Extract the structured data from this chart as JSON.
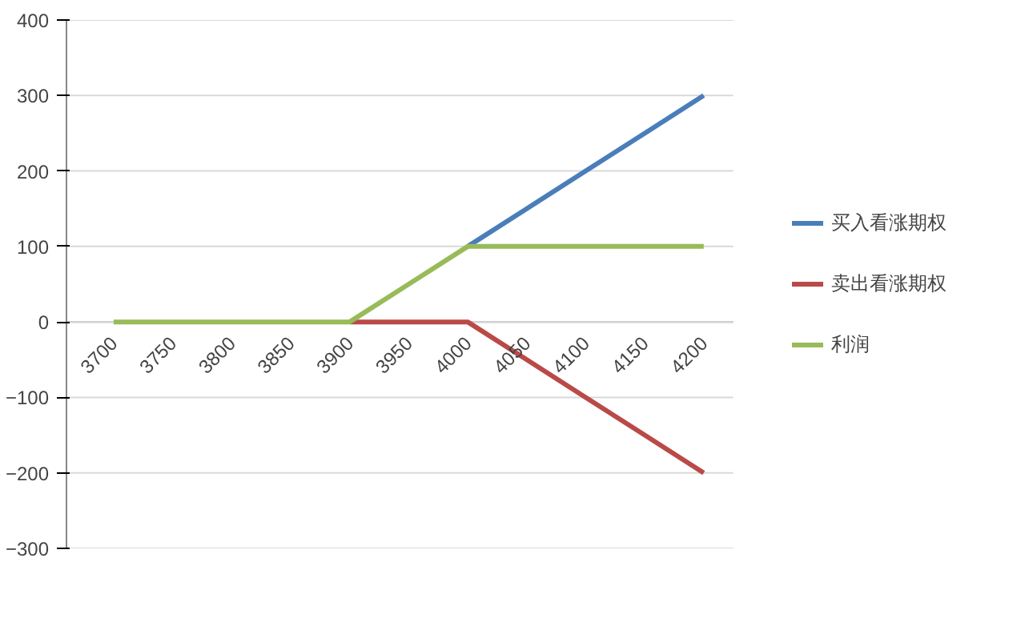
{
  "chart_data": {
    "type": "line",
    "categories": [
      "3700",
      "3750",
      "3800",
      "3850",
      "3900",
      "3950",
      "4000",
      "4050",
      "4100",
      "4150",
      "4200"
    ],
    "series": [
      {
        "name": "买入看涨期权",
        "color": "#4a7eba",
        "values": [
          null,
          null,
          null,
          null,
          null,
          null,
          100,
          150,
          200,
          250,
          300
        ]
      },
      {
        "name": "卖出看涨期权",
        "color": "#b94a48",
        "values": [
          null,
          null,
          null,
          null,
          0,
          0,
          0,
          -50,
          -100,
          -150,
          -200
        ]
      },
      {
        "name": "利润",
        "color": "#98bb59",
        "values": [
          0,
          0,
          0,
          0,
          0,
          50,
          100,
          100,
          100,
          100,
          100
        ]
      }
    ],
    "ylim": [
      -300,
      400
    ],
    "yticks": [
      -300,
      -200,
      -100,
      0,
      100,
      200,
      300,
      400
    ],
    "grid": "y",
    "legend": "right",
    "marker": "none",
    "line_style": "solid"
  }
}
